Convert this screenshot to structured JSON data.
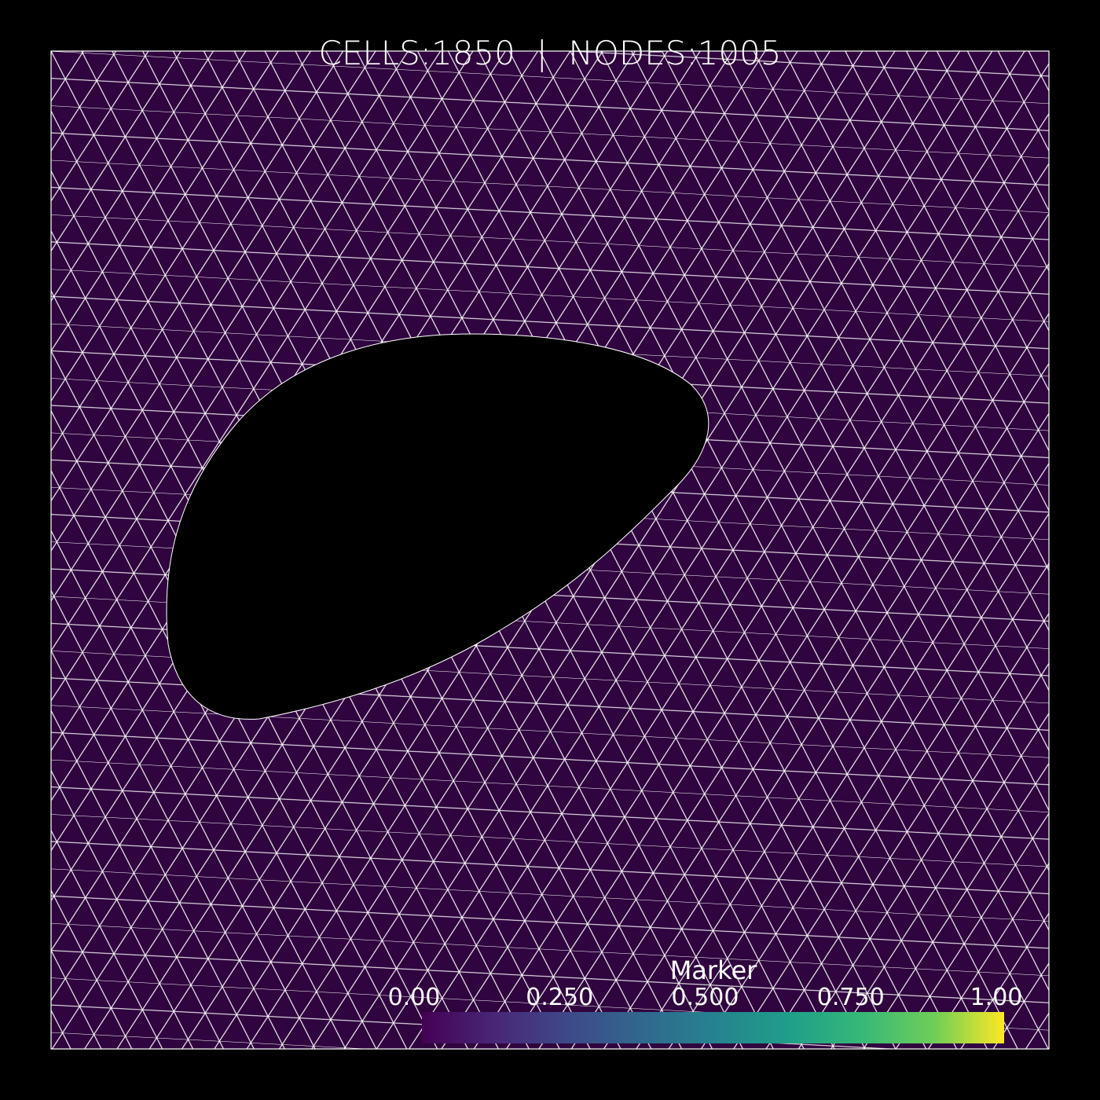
{
  "header": {
    "title": "CELLS:1850  |  NODES:1005"
  },
  "colorbar": {
    "title": "Marker",
    "range": [
      0,
      1
    ],
    "ticks": [
      {
        "value": 0,
        "label": "0.00"
      },
      {
        "value": 0.25,
        "label": "0.250"
      },
      {
        "value": 0.5,
        "label": "0.500"
      },
      {
        "value": 0.75,
        "label": "0.750"
      },
      {
        "value": 1,
        "label": "1.00"
      }
    ]
  }
}
